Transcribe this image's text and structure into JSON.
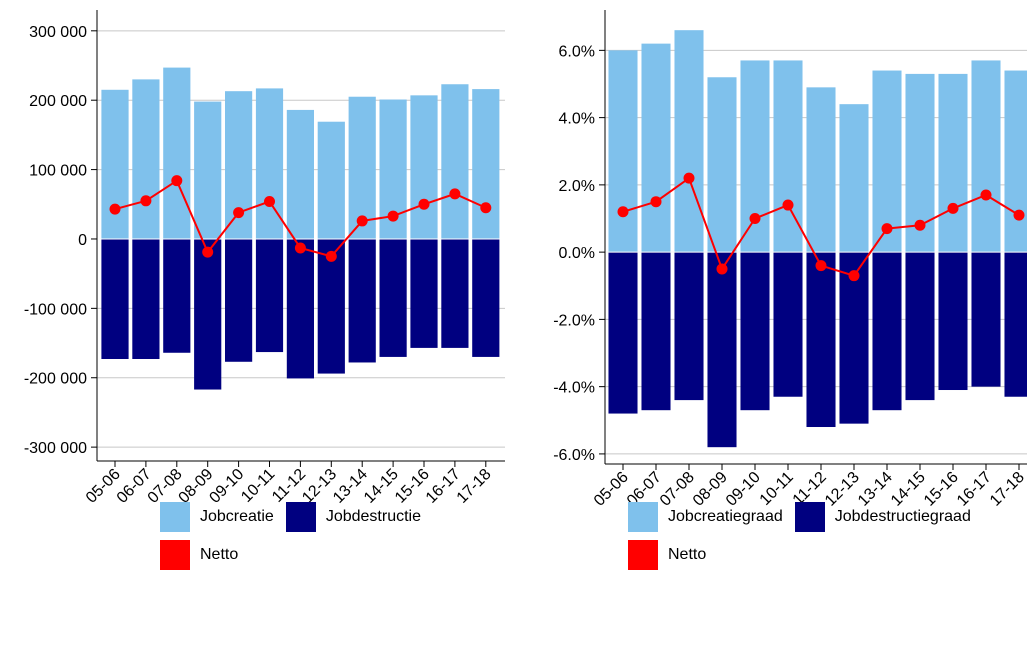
{
  "chart_data": [
    {
      "type": "bar",
      "categories": [
        "05-06",
        "06-07",
        "07-08",
        "08-09",
        "09-10",
        "10-11",
        "11-12",
        "12-13",
        "13-14",
        "14-15",
        "15-16",
        "16-17",
        "17-18"
      ],
      "series": [
        {
          "name": "Jobcreatie",
          "kind": "bar",
          "color": "#7FC1EC",
          "values": [
            215000,
            230000,
            247000,
            198000,
            213000,
            217000,
            186000,
            169000,
            205000,
            201000,
            207000,
            223000,
            216000
          ]
        },
        {
          "name": "Jobdestructie",
          "kind": "bar",
          "color": "#000080",
          "values": [
            -173000,
            -173000,
            -164000,
            -217000,
            -177000,
            -163000,
            -201000,
            -194000,
            -178000,
            -170000,
            -157000,
            -157000,
            -170000
          ]
        },
        {
          "name": "Netto",
          "kind": "line",
          "color": "#FF0000",
          "values": [
            43000,
            55000,
            84000,
            -19000,
            38000,
            54000,
            -13000,
            -25000,
            26000,
            33000,
            50000,
            65000,
            45000
          ]
        }
      ],
      "ylim": [
        -320000,
        330000
      ],
      "yticks": [
        -300000,
        -200000,
        -100000,
        0,
        100000,
        200000,
        300000
      ],
      "yticklabels": [
        "-300 000",
        "-200 000",
        "-100 000",
        "0",
        "100 000",
        "200 000",
        "300 000"
      ],
      "grid": true,
      "legend_position": "bottom"
    },
    {
      "type": "bar",
      "categories": [
        "05-06",
        "06-07",
        "07-08",
        "08-09",
        "09-10",
        "10-11",
        "11-12",
        "12-13",
        "13-14",
        "14-15",
        "15-16",
        "16-17",
        "17-18"
      ],
      "series": [
        {
          "name": "Jobcreatiegraad",
          "kind": "bar",
          "color": "#7FC1EC",
          "values": [
            6.0,
            6.2,
            6.6,
            5.2,
            5.7,
            5.7,
            4.9,
            4.4,
            5.4,
            5.3,
            5.3,
            5.7,
            5.4
          ]
        },
        {
          "name": "Jobdestructiegraad",
          "kind": "bar",
          "color": "#000080",
          "values": [
            -4.8,
            -4.7,
            -4.4,
            -5.8,
            -4.7,
            -4.3,
            -5.2,
            -5.1,
            -4.7,
            -4.4,
            -4.1,
            -4.0,
            -4.3
          ]
        },
        {
          "name": "Netto",
          "kind": "line",
          "color": "#FF0000",
          "values": [
            1.2,
            1.5,
            2.2,
            -0.5,
            1.0,
            1.4,
            -0.4,
            -0.7,
            0.7,
            0.8,
            1.3,
            1.7,
            1.1
          ]
        }
      ],
      "ylim": [
        -6.3,
        7.2
      ],
      "yticks": [
        -6,
        -4,
        -2,
        0,
        2,
        4,
        6
      ],
      "yticklabels": [
        "-6.0%",
        "-4.0%",
        "-2.0%",
        "0.0%",
        "2.0%",
        "4.0%",
        "6.0%"
      ],
      "grid": true,
      "legend_position": "bottom"
    }
  ],
  "legends": [
    {
      "row1": [
        "Jobcreatie",
        "Jobdestructie"
      ],
      "row2": [
        "Netto"
      ]
    },
    {
      "row1": [
        "Jobcreatiegraad",
        "Jobdestructiegraad"
      ],
      "row2": [
        "Netto"
      ]
    }
  ]
}
